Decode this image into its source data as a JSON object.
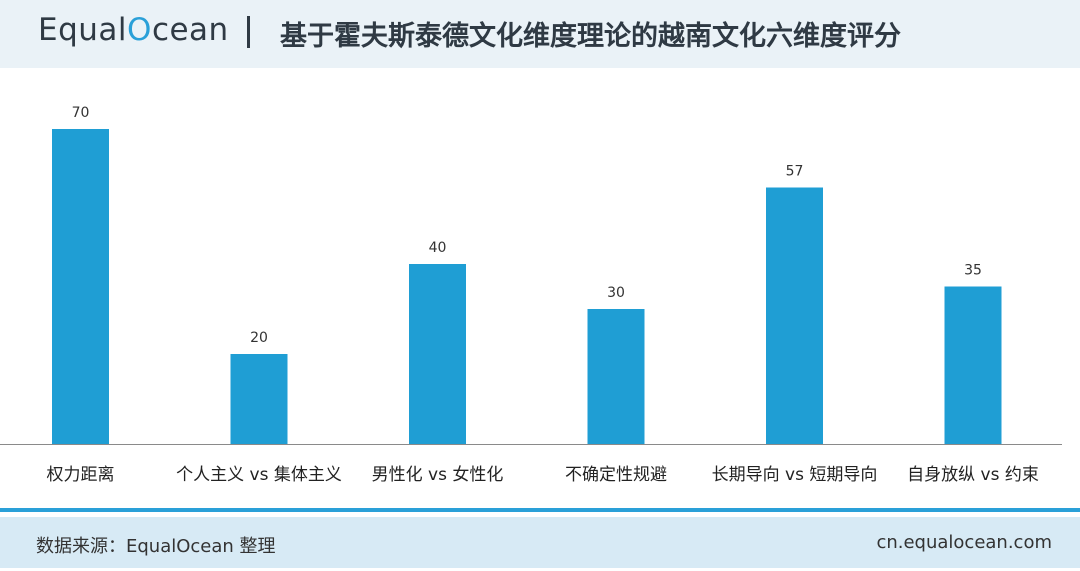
{
  "header": {
    "logo_prefix": "Equal",
    "logo_mark": "O",
    "logo_suffix": "cean",
    "title": "基于霍夫斯泰德文化维度理论的越南文化六维度评分"
  },
  "chart_data": {
    "type": "bar",
    "title": "基于霍夫斯泰德文化维度理论的越南文化六维度评分",
    "categories": [
      "权力距离",
      "个人主义 vs 集体主义",
      "男性化 vs 女性化",
      "不确定性规避",
      "长期导向 vs 短期导向",
      "自身放纵 vs 约束"
    ],
    "values": [
      70,
      20,
      40,
      30,
      57,
      35
    ],
    "xlabel": "",
    "ylabel": "",
    "ylim": [
      0,
      70
    ],
    "grid": false,
    "bar_color": "#1f9ed4"
  },
  "footer": {
    "source": "数据来源：EqualOcean 整理",
    "site": "cn.equalocean.com"
  },
  "colors": {
    "accent": "#2aa0d8",
    "header_bg": "#eaf2f7",
    "footer_bg": "#d7eaf5"
  }
}
